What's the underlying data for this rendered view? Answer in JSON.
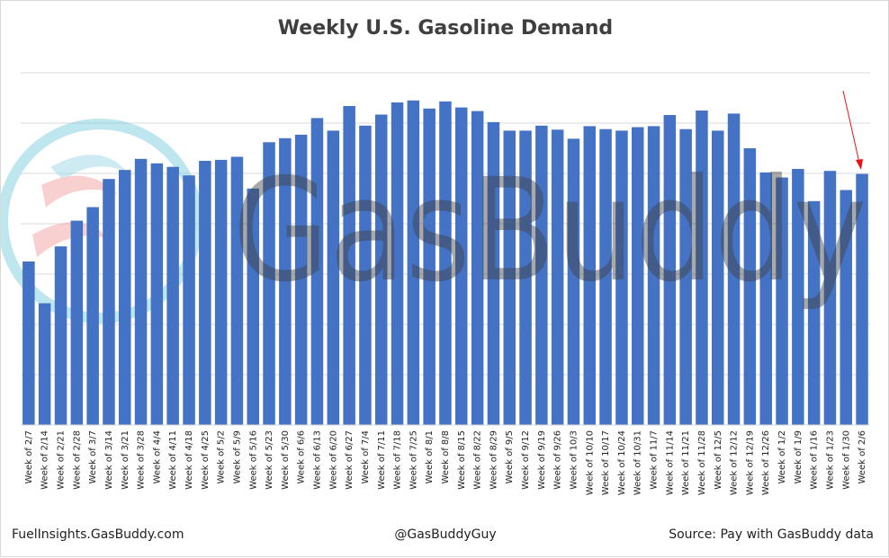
{
  "chart_data": {
    "type": "bar",
    "title": "Weekly U.S. Gasoline Demand",
    "categories": [
      "Week of 2/7",
      "Week of 2/14",
      "Week of 2/21",
      "Week of 2/28",
      "Week of 3/7",
      "Week of 3/14",
      "Week of 3/21",
      "Week of 3/28",
      "Week of 4/4",
      "Week of 4/11",
      "Week of 4/18",
      "Week of 4/25",
      "Week of 5/2",
      "Week of 5/9",
      "Week of 5/16",
      "Week of 5/23",
      "Week of 5/30",
      "Week of 6/6",
      "Week of 6/13",
      "Week of 6/20",
      "Week of 6/27",
      "Week of 7/4",
      "Week of 7/11",
      "Week of 7/18",
      "Week of 7/25",
      "Week of 8/1",
      "Week of 8/8",
      "Week of 8/15",
      "Week of 8/22",
      "Week of 8/29",
      "Week of 9/5",
      "Week of 9/12",
      "Week of 9/19",
      "Week of 9/26",
      "Week of 10/3",
      "Week of 10/10",
      "Week of 10/17",
      "Week of 10/24",
      "Week of 10/31",
      "Week of 11/7",
      "Week of 11/14",
      "Week of 11/21",
      "Week of 11/28",
      "Week of 12/5",
      "Week of 12/12",
      "Week of 12/19",
      "Week of 12/26",
      "Week of 1/2",
      "Week of 1/9",
      "Week of 1/16",
      "Week of 1/23",
      "Week of 1/30",
      "Week of 2/6"
    ],
    "values": [
      3.25,
      2.42,
      3.55,
      4.06,
      4.33,
      4.89,
      5.07,
      5.29,
      5.2,
      5.13,
      4.96,
      5.25,
      5.27,
      5.33,
      4.7,
      5.62,
      5.7,
      5.77,
      6.1,
      5.85,
      6.34,
      5.95,
      6.17,
      6.41,
      6.45,
      6.29,
      6.43,
      6.31,
      6.24,
      6.02,
      5.85,
      5.85,
      5.95,
      5.87,
      5.69,
      5.94,
      5.88,
      5.85,
      5.92,
      5.94,
      6.16,
      5.88,
      6.25,
      5.85,
      6.19,
      5.5,
      5.02,
      4.92,
      5.09,
      4.45,
      5.05,
      4.67,
      4.99
    ],
    "ylim": [
      0,
      7
    ],
    "y_gridlines": 7,
    "y_tick_labels_shown": false,
    "grid": true,
    "bar_color": "#4472c4",
    "annotations": [
      {
        "type": "arrow",
        "color": "#e81414",
        "target_category": "Week of 2/6"
      }
    ]
  },
  "watermark": {
    "text": "GasBuddy",
    "logo": "gasbuddy-logo"
  },
  "footer": {
    "left": "FuelInsights.GasBuddy.com",
    "center": "@GasBuddyGuy",
    "right": "Source: Pay with GasBuddy data"
  }
}
